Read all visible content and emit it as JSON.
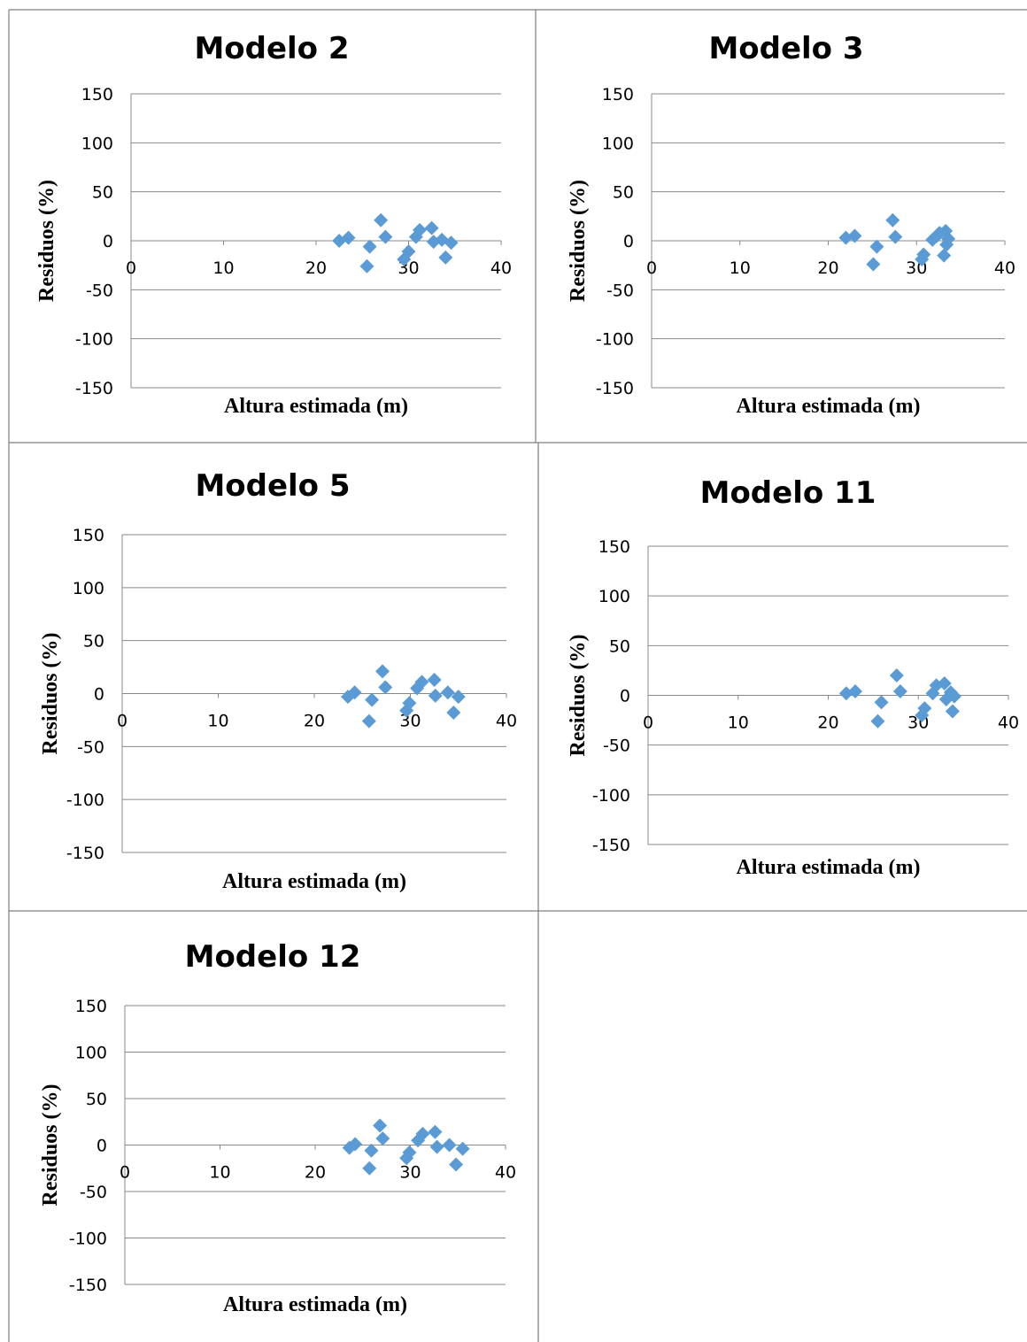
{
  "figure": {
    "panels": [
      {
        "id": "modelo-2",
        "title": "Modelo 2"
      },
      {
        "id": "modelo-3",
        "title": "Modelo 3"
      },
      {
        "id": "modelo-5",
        "title": "Modelo 5"
      },
      {
        "id": "modelo-11",
        "title": "Modelo 11"
      },
      {
        "id": "modelo-12",
        "title": "Modelo 12"
      }
    ]
  },
  "chart_data": [
    {
      "type": "scatter",
      "title": "Modelo 2",
      "xlabel": "Altura estimada (m)",
      "ylabel": "Residuos (%)",
      "xlim": [
        0,
        40
      ],
      "ylim": [
        -150,
        150
      ],
      "xticks": [
        0,
        10,
        20,
        30,
        40
      ],
      "yticks": [
        150,
        100,
        50,
        0,
        -50,
        -100,
        -150
      ],
      "grid": "horizontal",
      "color": "#5B9BD5",
      "marker": "diamond",
      "points": [
        {
          "x": 22.5,
          "y": 0
        },
        {
          "x": 23.5,
          "y": 3
        },
        {
          "x": 25.5,
          "y": -26
        },
        {
          "x": 25.8,
          "y": -6
        },
        {
          "x": 27.0,
          "y": 21
        },
        {
          "x": 27.5,
          "y": 4
        },
        {
          "x": 29.5,
          "y": -19
        },
        {
          "x": 30.0,
          "y": -11
        },
        {
          "x": 30.8,
          "y": 4
        },
        {
          "x": 31.2,
          "y": 11
        },
        {
          "x": 32.5,
          "y": 13
        },
        {
          "x": 32.7,
          "y": -1
        },
        {
          "x": 33.6,
          "y": 1
        },
        {
          "x": 34.0,
          "y": -17
        },
        {
          "x": 34.6,
          "y": -2
        }
      ]
    },
    {
      "type": "scatter",
      "title": "Modelo 3",
      "xlabel": "Altura estimada (m)",
      "ylabel": "Residuos (%)",
      "xlim": [
        0,
        40
      ],
      "ylim": [
        -150,
        150
      ],
      "xticks": [
        0,
        10,
        20,
        30,
        40
      ],
      "yticks": [
        150,
        100,
        50,
        0,
        -50,
        -100,
        -150
      ],
      "grid": "horizontal",
      "color": "#5B9BD5",
      "marker": "diamond",
      "points": [
        {
          "x": 22.0,
          "y": 3
        },
        {
          "x": 23.0,
          "y": 5
        },
        {
          "x": 25.1,
          "y": -24
        },
        {
          "x": 25.5,
          "y": -6
        },
        {
          "x": 27.3,
          "y": 21
        },
        {
          "x": 27.6,
          "y": 4
        },
        {
          "x": 30.6,
          "y": -19
        },
        {
          "x": 30.8,
          "y": -14
        },
        {
          "x": 31.8,
          "y": 1
        },
        {
          "x": 32.3,
          "y": 5
        },
        {
          "x": 32.6,
          "y": 8
        },
        {
          "x": 33.1,
          "y": -15
        },
        {
          "x": 33.3,
          "y": 10
        },
        {
          "x": 33.4,
          "y": -4
        },
        {
          "x": 33.6,
          "y": 2
        }
      ]
    },
    {
      "type": "scatter",
      "title": "Modelo 5",
      "xlabel": "Altura estimada (m)",
      "ylabel": "Residuos (%)",
      "xlim": [
        0,
        40
      ],
      "ylim": [
        -150,
        150
      ],
      "xticks": [
        0,
        10,
        20,
        30,
        40
      ],
      "yticks": [
        150,
        100,
        50,
        0,
        -50,
        -100,
        -150
      ],
      "grid": "horizontal",
      "color": "#5B9BD5",
      "marker": "diamond",
      "points": [
        {
          "x": 23.5,
          "y": -3
        },
        {
          "x": 24.2,
          "y": 1
        },
        {
          "x": 25.7,
          "y": -26
        },
        {
          "x": 26.0,
          "y": -6
        },
        {
          "x": 27.1,
          "y": 21
        },
        {
          "x": 27.4,
          "y": 6
        },
        {
          "x": 29.6,
          "y": -16
        },
        {
          "x": 29.9,
          "y": -9
        },
        {
          "x": 30.7,
          "y": 5
        },
        {
          "x": 31.2,
          "y": 11
        },
        {
          "x": 32.5,
          "y": 13
        },
        {
          "x": 32.6,
          "y": -2
        },
        {
          "x": 33.9,
          "y": 1
        },
        {
          "x": 34.5,
          "y": -18
        },
        {
          "x": 35.0,
          "y": -3
        }
      ]
    },
    {
      "type": "scatter",
      "title": "Modelo 11",
      "xlabel": "Altura estimada (m)",
      "ylabel": "Residuos (%)",
      "xlim": [
        0,
        40
      ],
      "ylim": [
        -150,
        150
      ],
      "xticks": [
        0,
        10,
        20,
        30,
        40
      ],
      "yticks": [
        150,
        100,
        50,
        0,
        -50,
        -100,
        -150
      ],
      "grid": "horizontal",
      "color": "#5B9BD5",
      "marker": "diamond",
      "points": [
        {
          "x": 22.0,
          "y": 2
        },
        {
          "x": 23.0,
          "y": 4
        },
        {
          "x": 25.5,
          "y": -26
        },
        {
          "x": 25.9,
          "y": -7
        },
        {
          "x": 27.6,
          "y": 20
        },
        {
          "x": 28.0,
          "y": 4
        },
        {
          "x": 30.4,
          "y": -20
        },
        {
          "x": 30.7,
          "y": -13
        },
        {
          "x": 31.6,
          "y": 2
        },
        {
          "x": 32.0,
          "y": 10
        },
        {
          "x": 32.9,
          "y": 12
        },
        {
          "x": 33.1,
          "y": -4
        },
        {
          "x": 33.6,
          "y": 3
        },
        {
          "x": 33.8,
          "y": -16
        },
        {
          "x": 34.0,
          "y": -1
        }
      ]
    },
    {
      "type": "scatter",
      "title": "Modelo 12",
      "xlabel": "Altura estimada (m)",
      "ylabel": "Residuos (%)",
      "xlim": [
        0,
        40
      ],
      "ylim": [
        -150,
        150
      ],
      "xticks": [
        0,
        10,
        20,
        30,
        40
      ],
      "yticks": [
        150,
        100,
        50,
        0,
        -50,
        -100,
        -150
      ],
      "grid": "horizontal",
      "color": "#5B9BD5",
      "marker": "diamond",
      "points": [
        {
          "x": 23.6,
          "y": -3
        },
        {
          "x": 24.2,
          "y": 1
        },
        {
          "x": 25.7,
          "y": -25
        },
        {
          "x": 25.9,
          "y": -6
        },
        {
          "x": 26.8,
          "y": 21
        },
        {
          "x": 27.1,
          "y": 7
        },
        {
          "x": 29.6,
          "y": -14
        },
        {
          "x": 29.9,
          "y": -8
        },
        {
          "x": 30.8,
          "y": 5
        },
        {
          "x": 31.3,
          "y": 12
        },
        {
          "x": 32.6,
          "y": 14
        },
        {
          "x": 32.8,
          "y": -2
        },
        {
          "x": 34.1,
          "y": 0
        },
        {
          "x": 34.8,
          "y": -21
        },
        {
          "x": 35.5,
          "y": -4
        }
      ]
    }
  ]
}
